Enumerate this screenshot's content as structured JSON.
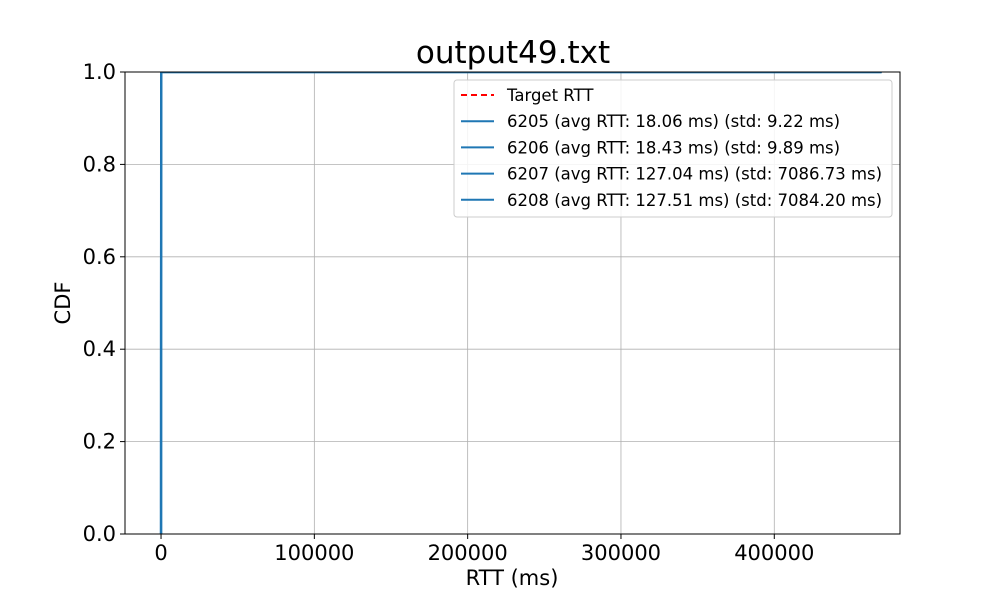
{
  "chart_data": {
    "type": "line",
    "title": "output49.txt",
    "xlabel": "RTT (ms)",
    "ylabel": "CDF",
    "xlim": [
      -23500,
      482000
    ],
    "ylim": [
      0,
      1
    ],
    "x_ticks": [
      0,
      100000,
      200000,
      300000,
      400000
    ],
    "x_tick_labels": [
      "0",
      "100000",
      "200000",
      "300000",
      "400000"
    ],
    "y_ticks": [
      0,
      0.2,
      0.4,
      0.6,
      0.8,
      1.0
    ],
    "y_tick_labels": [
      "0.0",
      "0.2",
      "0.4",
      "0.6",
      "0.8",
      "1.0"
    ],
    "grid": true,
    "legend_position": "top-right",
    "target_line": {
      "name": "Target RTT",
      "style": "dashed",
      "color": "#ff0000"
    },
    "series": [
      {
        "name": "6205 (avg RTT: 18.06 ms) (std: 9.22 ms)",
        "color": "#1f77b4",
        "x": [
          0,
          18,
          60,
          470000
        ],
        "y": [
          0,
          0.5,
          1.0,
          1.0
        ]
      },
      {
        "name": "6206 (avg RTT: 18.43 ms) (std: 9.89 ms)",
        "color": "#1f77b4",
        "x": [
          0,
          18,
          65,
          470000
        ],
        "y": [
          0,
          0.5,
          1.0,
          1.0
        ]
      },
      {
        "name": "6207 (avg RTT: 127.04 ms) (std: 7086.73 ms)",
        "color": "#1f77b4",
        "x": [
          0,
          20,
          120,
          470000
        ],
        "y": [
          0,
          0.5,
          0.9999,
          1.0
        ]
      },
      {
        "name": "6208 (avg RTT: 127.51 ms) (std: 7084.20 ms)",
        "color": "#1f77b4",
        "x": [
          0,
          20,
          120,
          470000
        ],
        "y": [
          0,
          0.5,
          0.9999,
          1.0
        ]
      }
    ]
  }
}
